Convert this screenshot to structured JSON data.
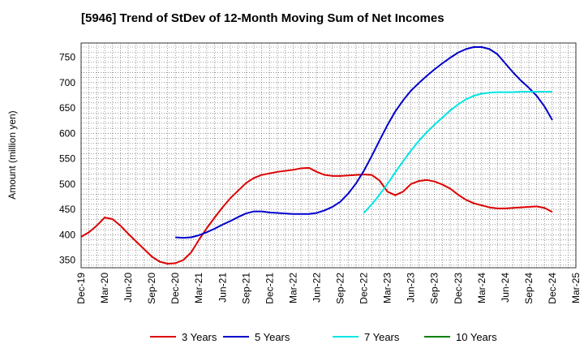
{
  "chart_data": {
    "type": "line",
    "title": "[5946]  Trend of StDev of 12-Month Moving Sum of Net Incomes",
    "ylabel": "Amount (million yen)",
    "xlabel": "",
    "ylim": [
      335,
      778
    ],
    "xlim": [
      "2019-12",
      "2025-03"
    ],
    "yticks": [
      350,
      400,
      450,
      500,
      550,
      600,
      650,
      700,
      750
    ],
    "xticks": [
      "Dec-19",
      "Mar-20",
      "Jun-20",
      "Sep-20",
      "Dec-20",
      "Mar-21",
      "Jun-21",
      "Sep-21",
      "Dec-21",
      "Mar-22",
      "Jun-22",
      "Sep-22",
      "Dec-22",
      "Mar-23",
      "Jun-23",
      "Sep-23",
      "Dec-23",
      "Mar-24",
      "Jun-24",
      "Sep-24",
      "Dec-24",
      "Mar-25"
    ],
    "grid": true,
    "legend_position": "bottom",
    "series": [
      {
        "name": "3 Years",
        "color": "#dd0000",
        "points": [
          [
            "2019-12",
            396
          ],
          [
            "2020-01",
            405
          ],
          [
            "2020-02",
            418
          ],
          [
            "2020-03",
            434
          ],
          [
            "2020-04",
            431
          ],
          [
            "2020-05",
            418
          ],
          [
            "2020-06",
            402
          ],
          [
            "2020-07",
            387
          ],
          [
            "2020-08",
            372
          ],
          [
            "2020-09",
            357
          ],
          [
            "2020-10",
            347
          ],
          [
            "2020-11",
            343
          ],
          [
            "2020-12",
            344
          ],
          [
            "2021-01",
            350
          ],
          [
            "2021-02",
            365
          ],
          [
            "2021-03",
            390
          ],
          [
            "2021-04",
            413
          ],
          [
            "2021-05",
            434
          ],
          [
            "2021-06",
            454
          ],
          [
            "2021-07",
            472
          ],
          [
            "2021-08",
            487
          ],
          [
            "2021-09",
            502
          ],
          [
            "2021-10",
            512
          ],
          [
            "2021-11",
            518
          ],
          [
            "2021-12",
            521
          ],
          [
            "2022-01",
            524
          ],
          [
            "2022-02",
            526
          ],
          [
            "2022-03",
            528
          ],
          [
            "2022-04",
            531
          ],
          [
            "2022-05",
            532
          ],
          [
            "2022-06",
            524
          ],
          [
            "2022-07",
            518
          ],
          [
            "2022-08",
            516
          ],
          [
            "2022-09",
            516
          ],
          [
            "2022-10",
            517
          ],
          [
            "2022-11",
            518
          ],
          [
            "2022-12",
            519
          ],
          [
            "2023-01",
            518
          ],
          [
            "2023-02",
            507
          ],
          [
            "2023-03",
            485
          ],
          [
            "2023-04",
            478
          ],
          [
            "2023-05",
            485
          ],
          [
            "2023-06",
            500
          ],
          [
            "2023-07",
            506
          ],
          [
            "2023-08",
            508
          ],
          [
            "2023-09",
            505
          ],
          [
            "2023-10",
            499
          ],
          [
            "2023-11",
            491
          ],
          [
            "2023-12",
            479
          ],
          [
            "2024-01",
            469
          ],
          [
            "2024-02",
            462
          ],
          [
            "2024-03",
            458
          ],
          [
            "2024-04",
            454
          ],
          [
            "2024-05",
            452
          ],
          [
            "2024-06",
            452
          ],
          [
            "2024-07",
            453
          ],
          [
            "2024-08",
            454
          ],
          [
            "2024-09",
            455
          ],
          [
            "2024-10",
            456
          ],
          [
            "2024-11",
            453
          ],
          [
            "2024-12",
            445
          ]
        ]
      },
      {
        "name": "5 Years",
        "color": "#0000cc",
        "points": [
          [
            "2020-12",
            395
          ],
          [
            "2021-01",
            394
          ],
          [
            "2021-02",
            395
          ],
          [
            "2021-03",
            399
          ],
          [
            "2021-04",
            405
          ],
          [
            "2021-05",
            412
          ],
          [
            "2021-06",
            420
          ],
          [
            "2021-07",
            427
          ],
          [
            "2021-08",
            435
          ],
          [
            "2021-09",
            442
          ],
          [
            "2021-10",
            446
          ],
          [
            "2021-11",
            446
          ],
          [
            "2021-12",
            444
          ],
          [
            "2022-01",
            443
          ],
          [
            "2022-02",
            442
          ],
          [
            "2022-03",
            441
          ],
          [
            "2022-04",
            441
          ],
          [
            "2022-05",
            441
          ],
          [
            "2022-06",
            443
          ],
          [
            "2022-07",
            448
          ],
          [
            "2022-08",
            455
          ],
          [
            "2022-09",
            465
          ],
          [
            "2022-10",
            481
          ],
          [
            "2022-11",
            501
          ],
          [
            "2022-12",
            526
          ],
          [
            "2023-01",
            555
          ],
          [
            "2023-02",
            586
          ],
          [
            "2023-03",
            616
          ],
          [
            "2023-04",
            643
          ],
          [
            "2023-05",
            665
          ],
          [
            "2023-06",
            684
          ],
          [
            "2023-07",
            699
          ],
          [
            "2023-08",
            713
          ],
          [
            "2023-09",
            726
          ],
          [
            "2023-10",
            738
          ],
          [
            "2023-11",
            749
          ],
          [
            "2023-12",
            759
          ],
          [
            "2024-01",
            766
          ],
          [
            "2024-02",
            770
          ],
          [
            "2024-03",
            770
          ],
          [
            "2024-04",
            766
          ],
          [
            "2024-05",
            756
          ],
          [
            "2024-06",
            738
          ],
          [
            "2024-07",
            720
          ],
          [
            "2024-08",
            704
          ],
          [
            "2024-09",
            690
          ],
          [
            "2024-10",
            674
          ],
          [
            "2024-11",
            653
          ],
          [
            "2024-12",
            626
          ]
        ]
      },
      {
        "name": "7 Years",
        "color": "#00e5e5",
        "points": [
          [
            "2022-12",
            443
          ],
          [
            "2023-01",
            460
          ],
          [
            "2023-02",
            479
          ],
          [
            "2023-03",
            500
          ],
          [
            "2023-04",
            523
          ],
          [
            "2023-05",
            545
          ],
          [
            "2023-06",
            566
          ],
          [
            "2023-07",
            585
          ],
          [
            "2023-08",
            602
          ],
          [
            "2023-09",
            617
          ],
          [
            "2023-10",
            631
          ],
          [
            "2023-11",
            645
          ],
          [
            "2023-12",
            657
          ],
          [
            "2024-01",
            667
          ],
          [
            "2024-02",
            674
          ],
          [
            "2024-03",
            678
          ],
          [
            "2024-04",
            680
          ],
          [
            "2024-05",
            681
          ],
          [
            "2024-06",
            681
          ],
          [
            "2024-07",
            681
          ],
          [
            "2024-08",
            682
          ],
          [
            "2024-09",
            682
          ],
          [
            "2024-10",
            682
          ],
          [
            "2024-11",
            682
          ],
          [
            "2024-12",
            682
          ]
        ]
      },
      {
        "name": "10 Years",
        "color": "#008000",
        "points": []
      }
    ]
  }
}
